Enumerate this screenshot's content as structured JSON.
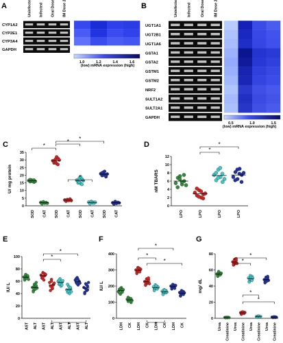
{
  "panelA": {
    "letter": "A",
    "genes": [
      "CYP1A2",
      "CYP2E1",
      "CYP3A4",
      "GAPDH"
    ],
    "lanes": [
      "Uninfected",
      "Infected",
      "Oral Dose 2",
      "IM Dose 2"
    ],
    "scale_ticks": [
      "1.0",
      "1.2",
      "1.4",
      "1.6"
    ],
    "scale_caption": "(low)  mRNA expression  (high)"
  },
  "panelB": {
    "letter": "B",
    "genes": [
      "UGT1A1",
      "UGT2B1",
      "UGT1A6",
      "GSTA1",
      "GSTA2",
      "GSTM1",
      "GSTM2",
      "NRF2",
      "SULT1A2",
      "SULT2A1",
      "GAPDH"
    ],
    "lanes": [
      "Uninfected",
      "Infected",
      "Oral Dose 2",
      "IM Dose 2"
    ],
    "scale_ticks": [
      "0.5",
      "1.0",
      "1.5"
    ],
    "scale_caption": "(low)  mRNA expression  (high)"
  },
  "heatmap_colors": {
    "A": [
      [
        "#3848f0",
        "#1a2bd8",
        "#2e40ea",
        "#2a3ce6"
      ],
      [
        "#4a5cf6",
        "#2234e0",
        "#3a4cf0",
        "#3042ea"
      ],
      [
        "#6070fa",
        "#3a4cee",
        "#4a5cf4",
        "#4456f2"
      ]
    ],
    "B": [
      [
        "#b8ccff",
        "#1420b8",
        "#3a4ce8",
        "#4a5cf0"
      ],
      [
        "#aec2ff",
        "#1a28c0",
        "#3848e6",
        "#4252ec"
      ],
      [
        "#a8bcff",
        "#202ec8",
        "#3646e4",
        "#4050ea"
      ],
      [
        "#9cb2ff",
        "#0a1690",
        "#2434d0",
        "#2a3ad6"
      ],
      [
        "#94aaff",
        "#101a9a",
        "#2838d4",
        "#3040da"
      ],
      [
        "#9ab0ff",
        "#1824b0",
        "#3040dc",
        "#3848e2"
      ],
      [
        "#a2b8ff",
        "#1a26b4",
        "#3444e0",
        "#3c4ce6"
      ],
      [
        "#b0c4ff",
        "#2a38cc",
        "#4050e6",
        "#4858ec"
      ],
      [
        "#a6baff",
        "#2230c2",
        "#3a4ae2",
        "#4454e8"
      ],
      [
        "#acc0ff",
        "#2836c8",
        "#4050e4",
        "#4a5aea"
      ]
    ]
  },
  "panelC": {
    "letter": "C",
    "ylabel": "U/ mg protein",
    "yticks": [
      "0",
      "5",
      "10",
      "15",
      "20",
      "25",
      "30",
      "35"
    ],
    "ylim": [
      0,
      35
    ],
    "xlabels": [
      "SOD",
      "CAT",
      "SOD",
      "CAT",
      "SOD",
      "CAT",
      "SOD",
      "CAT"
    ],
    "group_colors": [
      "#2e8b3a",
      "#d42020",
      "#3cc8c8",
      "#2030a0"
    ],
    "values": [
      [
        16.5,
        15.8,
        16.9,
        16.2,
        15.5,
        17.1,
        16.4,
        15.9,
        16.8,
        16.0
      ],
      [
        2.2,
        1.6,
        2.4,
        1.8,
        2.0,
        1.4,
        2.6,
        1.9,
        2.1,
        1.7
      ],
      [
        29.5,
        28.0,
        30.5,
        27.5,
        31.0,
        28.8,
        29.0,
        32.0,
        27.0,
        30.0
      ],
      [
        3.8,
        3.2,
        4.1,
        3.5,
        4.4,
        3.0,
        3.9,
        3.6,
        4.2,
        3.4
      ],
      [
        16.8,
        15.0,
        18.2,
        14.5,
        17.5,
        16.0,
        15.5,
        19.0,
        14.0,
        16.5
      ],
      [
        2.4,
        1.6,
        2.8,
        1.9,
        2.2,
        1.4,
        2.6,
        2.0,
        1.8,
        2.3
      ],
      [
        21.0,
        19.8,
        22.0,
        20.5,
        19.0,
        21.5,
        20.0,
        22.5,
        19.5,
        20.8
      ],
      [
        2.0,
        1.4,
        2.5,
        1.8,
        2.2,
        1.2,
        2.8,
        1.6,
        2.1,
        1.9
      ]
    ],
    "asterisks": [
      "*",
      "*",
      "*",
      "*"
    ]
  },
  "panelD": {
    "letter": "D",
    "ylabel": "nM TBARS",
    "yticks": [
      "0",
      "2",
      "4",
      "6",
      "8",
      "10",
      "12"
    ],
    "ylim": [
      0,
      12
    ],
    "xlabels": [
      "LPO",
      "LPO",
      "LPO",
      "LPO"
    ],
    "group_colors": [
      "#2e8b3a",
      "#d42020",
      "#3cc8c8",
      "#2030a0"
    ],
    "values": [
      [
        5.5,
        6.8,
        7.2,
        5.2,
        6.0,
        4.5,
        6.5,
        5.8,
        7.5,
        5.0
      ],
      [
        3.2,
        2.5,
        3.8,
        2.0,
        2.8,
        4.2,
        2.2,
        3.5,
        1.8,
        3.0
      ],
      [
        7.5,
        6.2,
        8.8,
        7.0,
        5.8,
        8.0,
        6.8,
        9.2,
        7.8,
        6.5
      ],
      [
        7.0,
        8.2,
        6.5,
        9.0,
        7.5,
        6.2,
        8.8,
        7.8,
        5.8,
        8.0
      ]
    ],
    "asterisks": [
      "*",
      "*"
    ]
  },
  "panelE": {
    "letter": "E",
    "ylabel": "IU/ L",
    "yticks": [
      "0",
      "20",
      "40",
      "60",
      "80",
      "100"
    ],
    "ylim": [
      0,
      100
    ],
    "xlabels": [
      "AST",
      "ALT",
      "AST",
      "ALT",
      "AST",
      "ALT",
      "AST",
      "ALT"
    ],
    "group_colors": [
      "#2e8b3a",
      "#d42020",
      "#3cc8c8",
      "#2030a0"
    ],
    "values": [
      [
        67,
        64,
        70,
        66,
        68,
        62,
        71,
        65,
        69,
        63
      ],
      [
        50,
        45,
        55,
        48,
        58,
        43,
        52,
        47,
        53,
        49
      ],
      [
        70,
        65,
        74,
        62,
        72,
        68,
        66,
        73,
        69,
        71
      ],
      [
        58,
        52,
        63,
        48,
        55,
        45,
        60,
        50,
        54,
        57
      ],
      [
        60,
        55,
        64,
        52,
        58,
        62,
        56,
        59,
        54,
        61
      ],
      [
        46,
        42,
        52,
        40,
        48,
        55,
        44,
        47,
        50,
        43
      ],
      [
        62,
        58,
        66,
        54,
        60,
        64,
        56,
        63,
        59,
        57
      ],
      [
        50,
        42,
        56,
        45,
        52,
        40,
        48,
        54,
        46,
        58
      ]
    ],
    "asterisks": [
      "*",
      "*",
      "*"
    ]
  },
  "panelF": {
    "letter": "F",
    "ylabel": "IU/ L",
    "yticks": [
      "0",
      "100",
      "200",
      "300",
      "400"
    ],
    "ylim": [
      0,
      400
    ],
    "xlabels": [
      "LDH",
      "CK",
      "LDH",
      "CK",
      "LDH",
      "CK",
      "LDH",
      "CK"
    ],
    "group_colors": [
      "#2e8b3a",
      "#d42020",
      "#3cc8c8",
      "#2030a0"
    ],
    "values": [
      [
        165,
        180,
        150,
        190,
        170,
        158,
        185,
        175,
        162,
        178
      ],
      [
        118,
        105,
        125,
        112,
        98,
        130,
        115,
        108,
        122,
        110
      ],
      [
        300,
        285,
        315,
        292,
        308,
        278,
        296,
        312,
        288,
        304
      ],
      [
        228,
        210,
        245,
        218,
        238,
        205,
        232,
        222,
        250,
        215
      ],
      [
        195,
        178,
        208,
        185,
        198,
        172,
        188,
        202,
        182,
        192
      ],
      [
        168,
        152,
        178,
        160,
        172,
        148,
        165,
        175,
        158,
        162
      ],
      [
        200,
        188,
        210,
        194,
        205,
        182,
        198,
        192,
        186,
        204
      ],
      [
        160,
        142,
        172,
        150,
        165,
        138,
        155,
        168,
        148,
        158
      ]
    ],
    "asterisks": [
      "*",
      "*",
      "*",
      "*"
    ]
  },
  "panelG": {
    "letter": "G",
    "ylabel": "mg/ dL",
    "yticks": [
      "0",
      "20",
      "40",
      "60",
      "80"
    ],
    "ylim": [
      0,
      80
    ],
    "xlabels": [
      "Urea",
      "Creatinine",
      "Urea",
      "Creatinine",
      "Urea",
      "Creatinine",
      "Urea",
      "Creatinine"
    ],
    "group_colors": [
      "#2e8b3a",
      "#d42020",
      "#3cc8c8",
      "#2030a0"
    ],
    "values": [
      [
        55,
        53,
        57,
        54,
        56,
        52,
        58,
        55,
        54,
        56
      ],
      [
        1.0,
        0.8,
        1.2,
        0.9,
        1.1,
        0.7,
        1.0,
        0.9,
        1.1,
        0.8
      ],
      [
        70,
        67,
        73,
        68,
        72,
        66,
        71,
        69,
        74,
        68
      ],
      [
        7.0,
        5.5,
        8.0,
        6.5,
        7.5,
        5.0,
        6.8,
        7.8,
        6.0,
        7.2
      ],
      [
        50,
        46,
        53,
        48,
        52,
        45,
        49,
        51,
        47,
        50
      ],
      [
        2.2,
        1.5,
        2.8,
        1.9,
        2.5,
        1.2,
        2.0,
        2.6,
        1.7,
        2.3
      ],
      [
        48,
        45,
        51,
        47,
        50,
        44,
        49,
        46,
        52,
        47
      ],
      [
        1.5,
        1.0,
        1.8,
        1.2,
        1.6,
        0.9,
        1.4,
        1.7,
        1.1,
        1.3
      ]
    ],
    "asterisks": [
      "*",
      "*",
      "*",
      "*"
    ]
  }
}
